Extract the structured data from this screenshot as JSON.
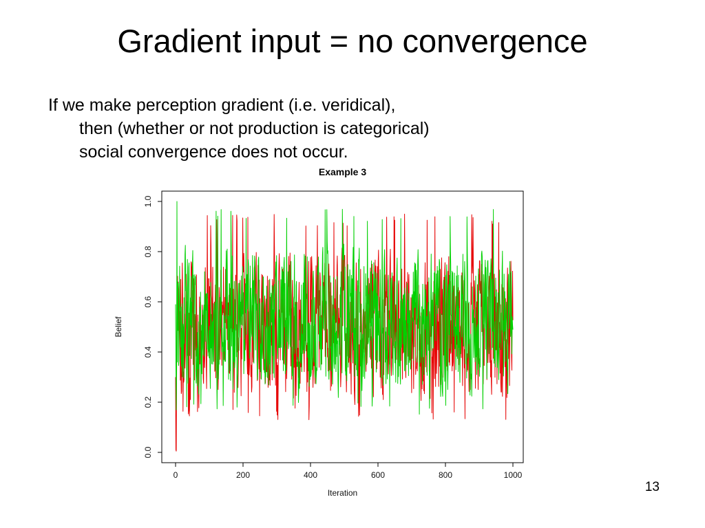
{
  "slide": {
    "title": "Gradient input = no convergence",
    "body_lines": [
      "If we make perception gradient (i.e. veridical),",
      "then (whether or not production is categorical)",
      "social convergence does not occur."
    ],
    "page_number": "13"
  },
  "chart_data": {
    "type": "line",
    "title": "Example 3",
    "xlabel": "Iteration",
    "ylabel": "Belief",
    "xlim": [
      0,
      1000
    ],
    "ylim": [
      0.0,
      1.0
    ],
    "x_ticks": [
      0,
      200,
      400,
      600,
      800,
      1000
    ],
    "x_tick_labels": [
      "0",
      "200",
      "400",
      "600",
      "800",
      "1000"
    ],
    "y_ticks": [
      0.0,
      0.2,
      0.4,
      0.6,
      0.8,
      1.0
    ],
    "y_tick_labels": [
      "0.0",
      "0.2",
      "0.4",
      "0.6",
      "0.8",
      "1.0"
    ],
    "grid": false,
    "legend": null,
    "description": "Two agents' belief trajectories (red and green lines) oscillate noisily around 0.5 for 1000 iterations without converging; values span roughly 0.13 to 0.97, with an initial red dip to 0.0 and an early green spike to 1.0.",
    "series": [
      {
        "name": "red-agent-belief",
        "color": "#e60000",
        "n_points": 1000,
        "mean": 0.5,
        "spread": 0.33,
        "min": 0.13,
        "max": 0.95,
        "seed": 1203,
        "initial_override": [
          [
            0,
            0.3
          ],
          [
            1,
            0.01
          ],
          [
            2,
            0.005
          ],
          [
            3,
            0.28
          ]
        ]
      },
      {
        "name": "green-agent-belief",
        "color": "#00d000",
        "n_points": 1000,
        "mean": 0.52,
        "spread": 0.33,
        "min": 0.15,
        "max": 0.97,
        "seed": 98217,
        "initial_override": [
          [
            3,
            0.32
          ],
          [
            4,
            1.0
          ],
          [
            5,
            0.36
          ]
        ]
      }
    ]
  }
}
